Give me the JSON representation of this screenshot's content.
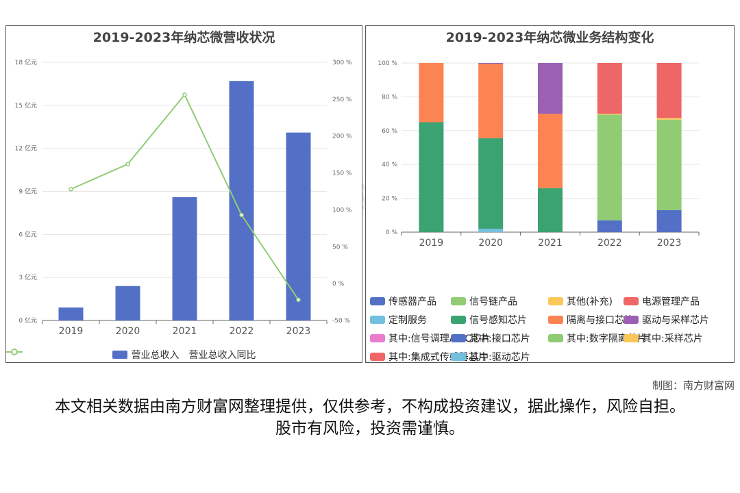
{
  "left": {
    "title": "2019-2023年纳芯微营收状况",
    "legend_bar": "营业总收入",
    "legend_line": "营业总收入同比"
  },
  "right": {
    "title": "2019-2023年纳芯微业务结构变化",
    "legend": [
      {
        "label": "传感器产品",
        "color": "#5470c6"
      },
      {
        "label": "信号链产品",
        "color": "#91cc75"
      },
      {
        "label": "其他(补充)",
        "color": "#fac858"
      },
      {
        "label": "电源管理产品",
        "color": "#ee6666"
      },
      {
        "label": "定制服务",
        "color": "#73c0de"
      },
      {
        "label": "信号感知芯片",
        "color": "#3ba272"
      },
      {
        "label": "隔离与接口芯片",
        "color": "#fc8452"
      },
      {
        "label": "驱动与采样芯片",
        "color": "#9a60b4"
      },
      {
        "label": "其中:信号调理ASIC芯片",
        "color": "#ea7ccc"
      },
      {
        "label": "其中:接口芯片",
        "color": "#5470c6"
      },
      {
        "label": "其中:数字隔离芯片",
        "color": "#91cc75"
      },
      {
        "label": "其中:采样芯片",
        "color": "#fac858"
      },
      {
        "label": "其中:集成式传感器芯片",
        "color": "#ee6666"
      },
      {
        "label": "其中:驱动芯片",
        "color": "#73c0de"
      }
    ]
  },
  "credit": "制图：南方财富网",
  "disclaimer": "本文相关数据由南方财富网整理提供，仅供参考，不构成投资建议，据此操作，风险自担。股市有风险，投资需谨慎。",
  "colors": {
    "bar": "#5470c6",
    "line": "#91cc75",
    "grid": "#e6e6e6"
  },
  "chart_data": [
    {
      "type": "bar",
      "title": "2019-2023年纳芯微营收状况",
      "categories": [
        "2019",
        "2020",
        "2021",
        "2022",
        "2023"
      ],
      "series": [
        {
          "name": "营业总收入",
          "type": "bar",
          "axis": "left",
          "values": [
            0.9,
            2.4,
            8.6,
            16.7,
            13.1
          ]
        },
        {
          "name": "营业总收入同比",
          "type": "line",
          "axis": "right",
          "values": [
            128,
            162,
            256,
            93,
            -22
          ]
        }
      ],
      "y_left": {
        "ticks": [
          "0 亿元",
          "3 亿元",
          "6 亿元",
          "9 亿元",
          "12 亿元",
          "15 亿元",
          "18 亿元"
        ],
        "range": [
          0,
          18
        ]
      },
      "y_right": {
        "ticks": [
          "-50 %",
          "0 %",
          "50 %",
          "100 %",
          "150 %",
          "200 %",
          "250 %",
          "300 %"
        ],
        "range": [
          -50,
          300
        ]
      },
      "legend_position": "bottom",
      "grid": true
    },
    {
      "type": "bar",
      "stacked": true,
      "title": "2019-2023年纳芯微业务结构变化",
      "categories": [
        "2019",
        "2020",
        "2021",
        "2022",
        "2023"
      ],
      "y_ticks": [
        "0 %",
        "20 %",
        "40 %",
        "60 %",
        "80 %",
        "100 %"
      ],
      "y_range": [
        0,
        100
      ],
      "series": [
        {
          "name": "定制服务",
          "color": "#73c0de",
          "values": [
            0,
            2,
            0,
            0,
            0
          ]
        },
        {
          "name": "信号感知芯片",
          "color": "#3ba272",
          "values": [
            65,
            53.5,
            26,
            0,
            0
          ]
        },
        {
          "name": "隔离与接口芯片",
          "color": "#fc8452",
          "values": [
            35,
            44,
            44,
            0,
            0
          ]
        },
        {
          "name": "驱动与采样芯片",
          "color": "#9a60b4",
          "values": [
            0,
            0.5,
            30,
            0,
            0
          ]
        },
        {
          "name": "传感器产品",
          "color": "#5470c6",
          "values": [
            0,
            0,
            0,
            7,
            13
          ]
        },
        {
          "name": "信号链产品",
          "color": "#91cc75",
          "values": [
            0,
            0,
            0,
            62.5,
            53.5
          ]
        },
        {
          "name": "其他(补充)",
          "color": "#fac858",
          "values": [
            0,
            0,
            0,
            0.5,
            1
          ]
        },
        {
          "name": "电源管理产品",
          "color": "#ee6666",
          "values": [
            0,
            0,
            0,
            30,
            32.5
          ]
        }
      ],
      "legend_position": "bottom",
      "grid": true
    }
  ]
}
